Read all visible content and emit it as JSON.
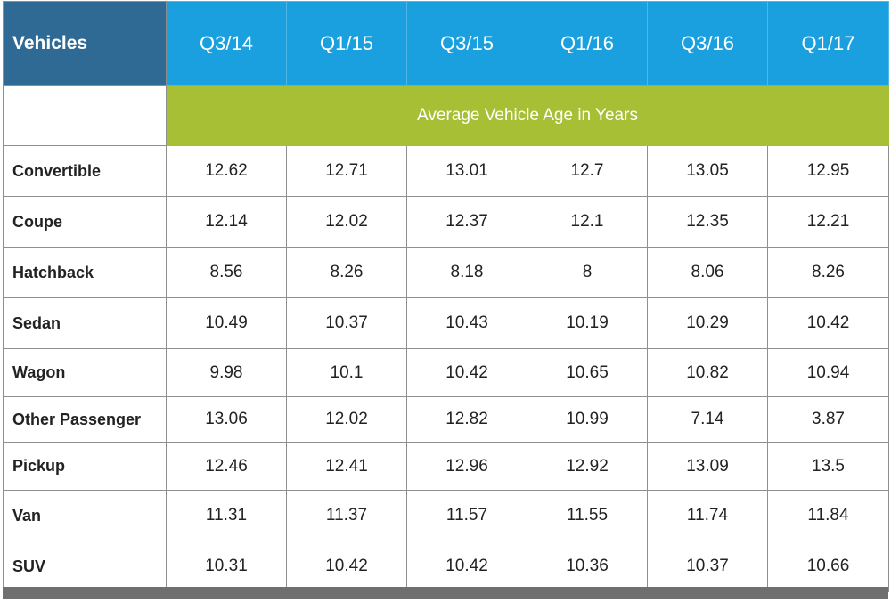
{
  "chart_data": {
    "type": "table",
    "title": "",
    "header_label": "Vehicles",
    "subtitle": "Average Vehicle Age in Years",
    "categories": [
      "Q3/14",
      "Q1/15",
      "Q3/15",
      "Q1/16",
      "Q3/16",
      "Q1/17"
    ],
    "series": [
      {
        "name": "Convertible",
        "values": [
          "12.62",
          "12.71",
          "13.01",
          "12.7",
          "13.05",
          "12.95"
        ]
      },
      {
        "name": "Coupe",
        "values": [
          "12.14",
          "12.02",
          "12.37",
          "12.1",
          "12.35",
          "12.21"
        ]
      },
      {
        "name": "Hatchback",
        "values": [
          "8.56",
          "8.26",
          "8.18",
          "8",
          "8.06",
          "8.26"
        ]
      },
      {
        "name": "Sedan",
        "values": [
          "10.49",
          "10.37",
          "10.43",
          "10.19",
          "10.29",
          "10.42"
        ]
      },
      {
        "name": "Wagon",
        "values": [
          "9.98",
          "10.1",
          "10.42",
          "10.65",
          "10.82",
          "10.94"
        ]
      },
      {
        "name": "Other Passenger",
        "values": [
          "13.06",
          "12.02",
          "12.82",
          "10.99",
          "7.14",
          "3.87"
        ]
      },
      {
        "name": "Pickup",
        "values": [
          "12.46",
          "12.41",
          "12.96",
          "12.92",
          "13.09",
          "13.5"
        ]
      },
      {
        "name": "Van",
        "values": [
          "11.31",
          "11.37",
          "11.57",
          "11.55",
          "11.74",
          "11.84"
        ]
      },
      {
        "name": "SUV",
        "values": [
          "10.31",
          "10.42",
          "10.42",
          "10.36",
          "10.37",
          "10.66"
        ]
      }
    ],
    "colors": {
      "header_corner": "#2e6a93",
      "header_quarter": "#1aa0df",
      "subtitle_band": "#a7bf35",
      "footer_bar": "#6f6f6f"
    }
  }
}
